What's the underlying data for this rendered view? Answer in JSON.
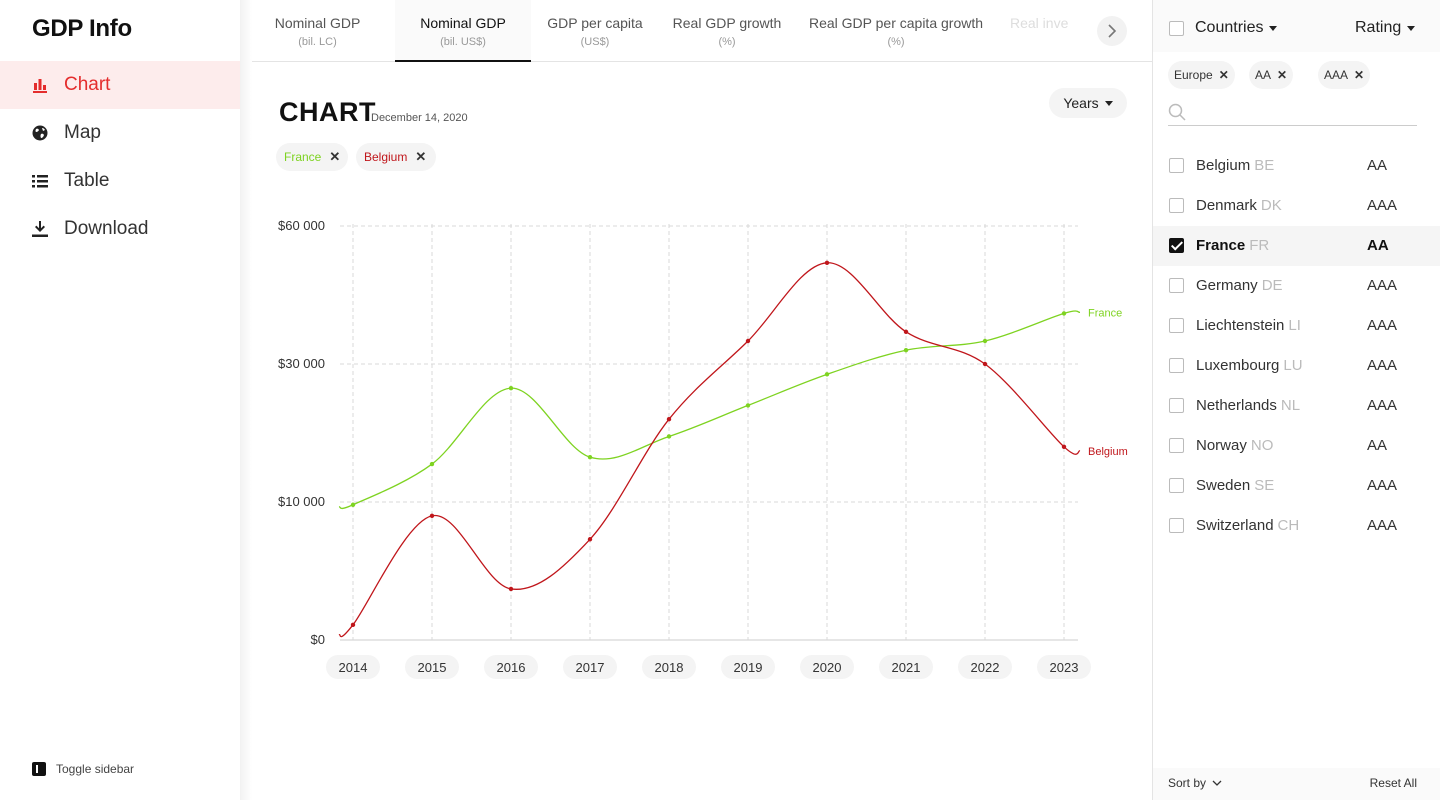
{
  "app": {
    "title": "GDP Info"
  },
  "sidebar": {
    "items": [
      {
        "label": "Chart",
        "icon": "bar-chart-icon",
        "active": true
      },
      {
        "label": "Map",
        "icon": "globe-icon",
        "active": false
      },
      {
        "label": "Table",
        "icon": "list-icon",
        "active": false
      },
      {
        "label": "Download",
        "icon": "download-icon",
        "active": false
      }
    ],
    "toggle_label": "Toggle sidebar"
  },
  "tabs": [
    {
      "label": "Nominal GDP",
      "sub": "(bil. LC)"
    },
    {
      "label": "Nominal GDP",
      "sub": "(bil. US$)",
      "active": true
    },
    {
      "label": "GDP per capita",
      "sub": "(US$)"
    },
    {
      "label": "Real GDP growth",
      "sub": "(%)"
    },
    {
      "label": "Real GDP per capita growth",
      "sub": "(%)"
    },
    {
      "label": "Real inve",
      "sub": ""
    }
  ],
  "chart_header": {
    "title": "CHART",
    "date": "December 14, 2020",
    "years_button": "Years"
  },
  "chart_filters": [
    {
      "label": "France",
      "color": "#7ed321"
    },
    {
      "label": "Belgium",
      "color": "#c0161b"
    }
  ],
  "chart_data": {
    "type": "line",
    "x": [
      "2014",
      "2015",
      "2016",
      "2017",
      "2018",
      "2019",
      "2020",
      "2021",
      "2022",
      "2023"
    ],
    "y_ticks": [
      "$0",
      "$10 000",
      "$30 000",
      "$60 000"
    ],
    "y_scale": "log-like",
    "grid": true,
    "series": [
      {
        "name": "France",
        "color": "#7ed321",
        "values": [
          9800,
          15500,
          26500,
          16500,
          19500,
          24000,
          28500,
          33000,
          35000,
          41000
        ]
      },
      {
        "name": "Belgium",
        "color": "#c0161b",
        "values": [
          1100,
          9000,
          3700,
          7300,
          22000,
          35000,
          52000,
          37000,
          30000,
          18000
        ]
      }
    ]
  },
  "right_panel": {
    "countries_label": "Countries",
    "rating_label": "Rating",
    "filter_chips": [
      "Europe",
      "AA",
      "AAA"
    ],
    "search_placeholder": "",
    "countries": [
      {
        "name": "Belgium",
        "code": "BE",
        "rating": "AA",
        "checked": false
      },
      {
        "name": "Denmark",
        "code": "DK",
        "rating": "AAA",
        "checked": false
      },
      {
        "name": "France",
        "code": "FR",
        "rating": "AA",
        "checked": true
      },
      {
        "name": "Germany",
        "code": "DE",
        "rating": "AAA",
        "checked": false
      },
      {
        "name": "Liechtenstein",
        "code": "LI",
        "rating": "AAA",
        "checked": false
      },
      {
        "name": "Luxembourg",
        "code": "LU",
        "rating": "AAA",
        "checked": false
      },
      {
        "name": "Netherlands",
        "code": "NL",
        "rating": "AAA",
        "checked": false
      },
      {
        "name": "Norway",
        "code": "NO",
        "rating": "AA",
        "checked": false
      },
      {
        "name": "Sweden",
        "code": "SE",
        "rating": "AAA",
        "checked": false
      },
      {
        "name": "Switzerland",
        "code": "CH",
        "rating": "AAA",
        "checked": false
      }
    ],
    "sort_label": "Sort by",
    "reset_label": "Reset All"
  }
}
